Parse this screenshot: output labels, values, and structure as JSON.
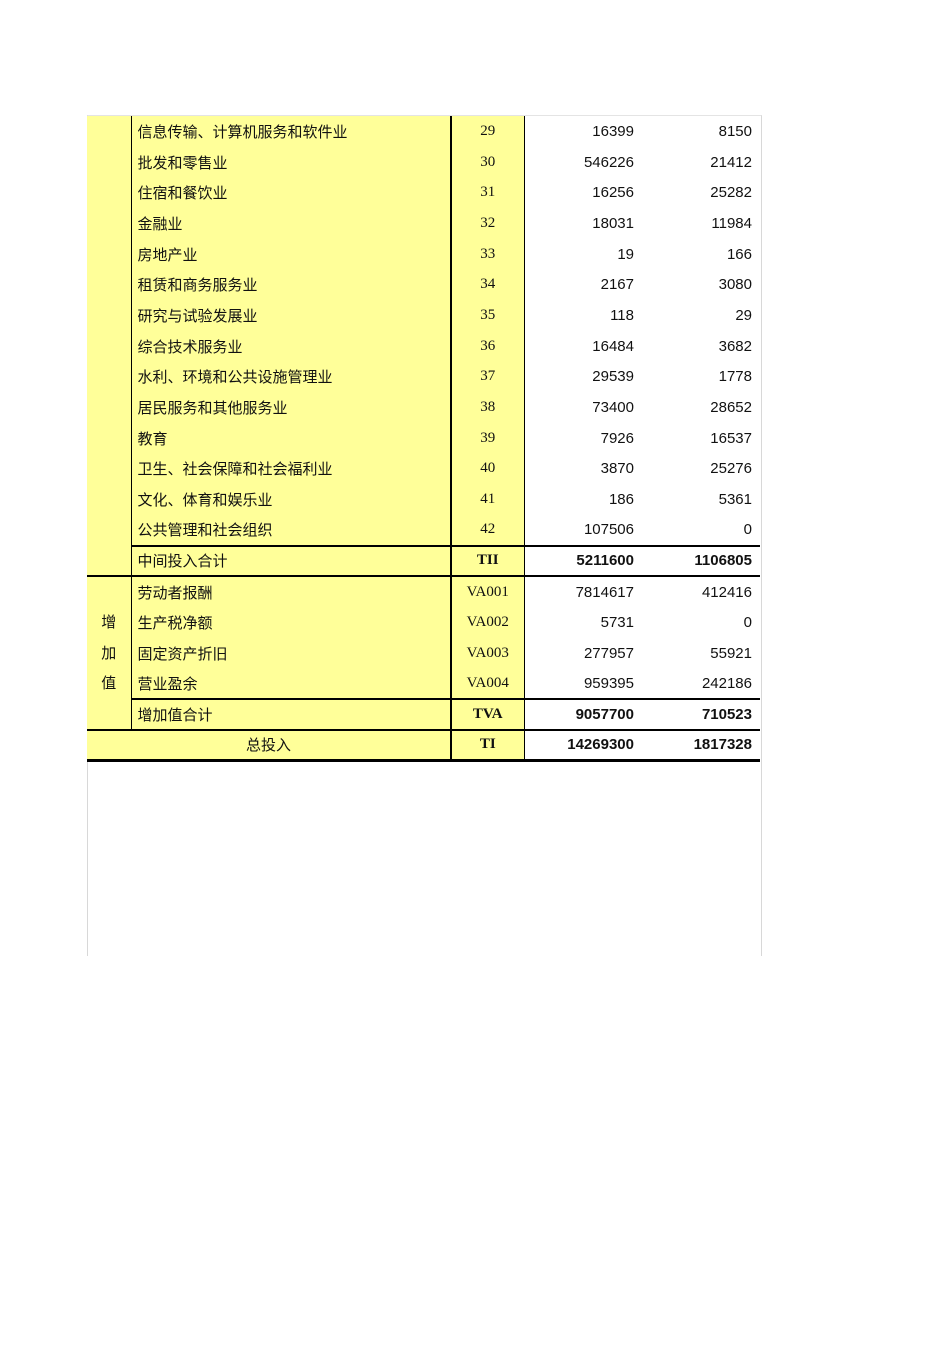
{
  "sector_rows": [
    {
      "name": "信息传输、计算机服务和软件业",
      "code": "29",
      "v1": "16399",
      "v2": "8150"
    },
    {
      "name": "批发和零售业",
      "code": "30",
      "v1": "546226",
      "v2": "21412"
    },
    {
      "name": "住宿和餐饮业",
      "code": "31",
      "v1": "16256",
      "v2": "25282"
    },
    {
      "name": "金融业",
      "code": "32",
      "v1": "18031",
      "v2": "11984"
    },
    {
      "name": "房地产业",
      "code": "33",
      "v1": "19",
      "v2": "166"
    },
    {
      "name": "租赁和商务服务业",
      "code": "34",
      "v1": "2167",
      "v2": "3080"
    },
    {
      "name": "研究与试验发展业",
      "code": "35",
      "v1": "118",
      "v2": "29"
    },
    {
      "name": "综合技术服务业",
      "code": "36",
      "v1": "16484",
      "v2": "3682"
    },
    {
      "name": "水利、环境和公共设施管理业",
      "code": "37",
      "v1": "29539",
      "v2": "1778"
    },
    {
      "name": "居民服务和其他服务业",
      "code": "38",
      "v1": "73400",
      "v2": "28652"
    },
    {
      "name": "教育",
      "code": "39",
      "v1": "7926",
      "v2": "16537"
    },
    {
      "name": "卫生、社会保障和社会福利业",
      "code": "40",
      "v1": "3870",
      "v2": "25276"
    },
    {
      "name": "文化、体育和娱乐业",
      "code": "41",
      "v1": "186",
      "v2": "5361"
    },
    {
      "name": "公共管理和社会组织",
      "code": "42",
      "v1": "107506",
      "v2": "0"
    }
  ],
  "intermediate_total": {
    "name": "中间投入合计",
    "code": "TII",
    "v1": "5211600",
    "v2": "1106805"
  },
  "value_added_group": {
    "label_chars": [
      "增",
      "加",
      "值"
    ]
  },
  "value_added_rows": [
    {
      "name": "劳动者报酬",
      "code": "VA001",
      "v1": "7814617",
      "v2": "412416"
    },
    {
      "name": "生产税净额",
      "code": "VA002",
      "v1": "5731",
      "v2": "0"
    },
    {
      "name": "固定资产折旧",
      "code": "VA003",
      "v1": "277957",
      "v2": "55921"
    },
    {
      "name": "营业盈余",
      "code": "VA004",
      "v1": "959395",
      "v2": "242186"
    }
  ],
  "value_added_total": {
    "name": "增加值合计",
    "code": "TVA",
    "v1": "9057700",
    "v2": "710523"
  },
  "total_input": {
    "name": "总投入",
    "code": "TI",
    "v1": "14269300",
    "v2": "1817328"
  },
  "colors": {
    "highlight": "#ffff99",
    "border": "#000000"
  }
}
